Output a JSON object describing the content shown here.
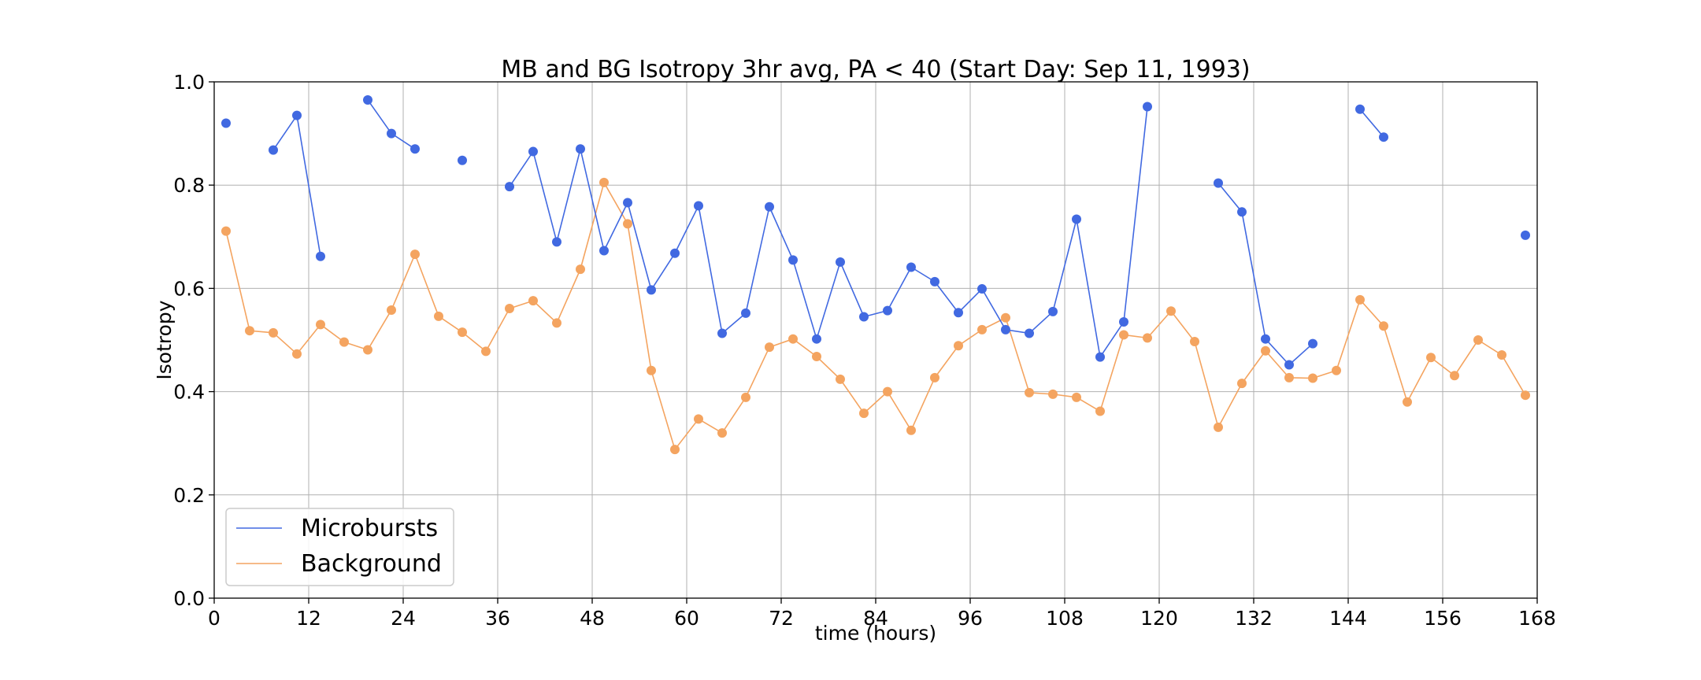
{
  "chart_data": {
    "type": "line",
    "title": "MB and BG Isotropy 3hr avg, PA < 40 (Start Day: Sep 11, 1993)",
    "xlabel": "time (hours)",
    "ylabel": "Isotropy",
    "xlim": [
      0,
      168
    ],
    "ylim": [
      0,
      1.0
    ],
    "xticks": [
      0,
      12,
      24,
      36,
      48,
      60,
      72,
      84,
      96,
      108,
      120,
      132,
      144,
      156,
      168
    ],
    "yticks": [
      0.0,
      0.2,
      0.4,
      0.6,
      0.8,
      1.0
    ],
    "grid": true,
    "legend_position": "lower-left",
    "series": [
      {
        "name": "Microbursts",
        "color": "#4169e1",
        "x": [
          1.5,
          7.5,
          10.5,
          13.5,
          19.5,
          22.5,
          25.5,
          31.5,
          37.5,
          40.5,
          43.5,
          46.5,
          49.5,
          52.5,
          55.5,
          58.5,
          61.5,
          64.5,
          67.5,
          70.5,
          73.5,
          76.5,
          79.5,
          82.5,
          85.5,
          88.5,
          91.5,
          94.5,
          97.5,
          100.5,
          103.5,
          106.5,
          109.5,
          112.5,
          115.5,
          118.5,
          127.5,
          130.5,
          133.5,
          136.5,
          139.5,
          145.5,
          148.5,
          166.5
        ],
        "y": [
          0.92,
          0.868,
          0.935,
          0.662,
          0.965,
          0.9,
          0.87,
          0.848,
          0.797,
          0.865,
          0.69,
          0.87,
          0.673,
          0.766,
          0.597,
          0.668,
          0.76,
          0.513,
          0.552,
          0.758,
          0.655,
          0.502,
          0.651,
          0.545,
          0.557,
          0.641,
          0.613,
          0.553,
          0.599,
          0.52,
          0.513,
          0.555,
          0.734,
          0.467,
          0.535,
          0.952,
          0.804,
          0.748,
          0.502,
          0.452,
          0.493,
          0.947,
          0.893,
          0.703
        ],
        "segments": [
          [
            0
          ],
          [
            1,
            2,
            3
          ],
          [
            4,
            5,
            6
          ],
          [
            7
          ],
          [
            8,
            9,
            10,
            11,
            12,
            13,
            14,
            15,
            16,
            17,
            18,
            19,
            20,
            21,
            22,
            23,
            24,
            25,
            26,
            27,
            28,
            29,
            30,
            31,
            32,
            33,
            34,
            35
          ],
          [
            36,
            37,
            38,
            39,
            40
          ],
          [
            41,
            42
          ],
          [
            43
          ]
        ]
      },
      {
        "name": "Background",
        "color": "#f4a460",
        "x": [
          1.5,
          4.5,
          7.5,
          10.5,
          13.5,
          16.5,
          19.5,
          22.5,
          25.5,
          28.5,
          31.5,
          34.5,
          37.5,
          40.5,
          43.5,
          46.5,
          49.5,
          52.5,
          55.5,
          58.5,
          61.5,
          64.5,
          67.5,
          70.5,
          73.5,
          76.5,
          79.5,
          82.5,
          85.5,
          88.5,
          91.5,
          94.5,
          97.5,
          100.5,
          103.5,
          106.5,
          109.5,
          112.5,
          115.5,
          118.5,
          121.5,
          124.5,
          127.5,
          130.5,
          133.5,
          136.5,
          139.5,
          142.5,
          145.5,
          148.5,
          151.5,
          154.5,
          157.5,
          160.5,
          163.5,
          166.5
        ],
        "y": [
          0.711,
          0.518,
          0.514,
          0.473,
          0.53,
          0.496,
          0.481,
          0.558,
          0.666,
          0.546,
          0.515,
          0.478,
          0.561,
          0.576,
          0.533,
          0.637,
          0.805,
          0.725,
          0.441,
          0.288,
          0.347,
          0.32,
          0.389,
          0.486,
          0.502,
          0.468,
          0.424,
          0.358,
          0.4,
          0.325,
          0.427,
          0.489,
          0.52,
          0.543,
          0.398,
          0.395,
          0.389,
          0.362,
          0.51,
          0.504,
          0.556,
          0.497,
          0.331,
          0.416,
          0.479,
          0.427,
          0.426,
          0.441,
          0.578,
          0.527,
          0.38,
          0.466,
          0.431,
          0.5,
          0.471,
          0.393
        ]
      }
    ]
  }
}
